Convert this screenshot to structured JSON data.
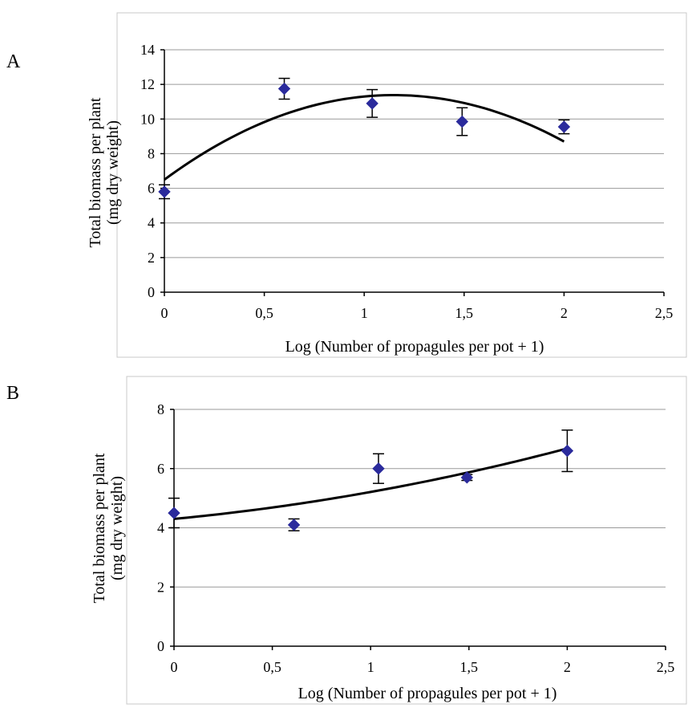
{
  "chart_data": [
    {
      "type": "scatter",
      "panel_label": "A",
      "title": "",
      "xlabel": "Log (Number of propagules per pot + 1)",
      "ylabel_line1": "Total biomass per plant",
      "ylabel_line2": "(mg dry weight)",
      "xlim": [
        0,
        2.5
      ],
      "ylim": [
        0,
        14
      ],
      "xticks": [
        0,
        0.5,
        1,
        1.5,
        2,
        2.5
      ],
      "xtick_labels": [
        "0",
        "0,5",
        "1",
        "1,5",
        "2",
        "2,5"
      ],
      "yticks": [
        0,
        2,
        4,
        6,
        8,
        10,
        12,
        14
      ],
      "ytick_labels": [
        "0",
        "2",
        "4",
        "6",
        "8",
        "10",
        "12",
        "14"
      ],
      "grid": "horizontal",
      "points": [
        {
          "x": 0.0,
          "y": 5.8,
          "err": 0.4
        },
        {
          "x": 0.6,
          "y": 11.75,
          "err": 0.6
        },
        {
          "x": 1.04,
          "y": 10.9,
          "err": 0.8
        },
        {
          "x": 1.49,
          "y": 9.85,
          "err": 0.8
        },
        {
          "x": 2.0,
          "y": 9.55,
          "err": 0.4
        }
      ],
      "trend": {
        "type": "quadratic",
        "coef": [
          6.5,
          8.5,
          -3.7
        ],
        "xrange": [
          0,
          2
        ]
      },
      "marker_color": "#2b2b9c",
      "line_color": "#000000"
    },
    {
      "type": "scatter",
      "panel_label": "B",
      "title": "",
      "xlabel": "Log (Number of propagules per pot + 1)",
      "ylabel_line1": "Total biomass per plant",
      "ylabel_line2": "(mg dry weight)",
      "xlim": [
        0,
        2.5
      ],
      "ylim": [
        0,
        8
      ],
      "xticks": [
        0,
        0.5,
        1,
        1.5,
        2,
        2.5
      ],
      "xtick_labels": [
        "0",
        "0,5",
        "1",
        "1,5",
        "2",
        "2,5"
      ],
      "yticks": [
        0,
        2,
        4,
        6,
        8
      ],
      "ytick_labels": [
        "0",
        "2",
        "4",
        "6",
        "8"
      ],
      "grid": "horizontal",
      "points": [
        {
          "x": 0.0,
          "y": 4.5,
          "err": 0.5
        },
        {
          "x": 0.61,
          "y": 4.1,
          "err": 0.2
        },
        {
          "x": 1.04,
          "y": 6.0,
          "err": 0.5
        },
        {
          "x": 1.49,
          "y": 5.7,
          "err": 0.1
        },
        {
          "x": 2.0,
          "y": 6.6,
          "err": 0.7
        }
      ],
      "trend": {
        "type": "quadratic",
        "coef": [
          4.3,
          0.63,
          0.28
        ],
        "xrange": [
          0,
          2
        ]
      },
      "marker_color": "#2b2b9c",
      "line_color": "#000000"
    }
  ]
}
